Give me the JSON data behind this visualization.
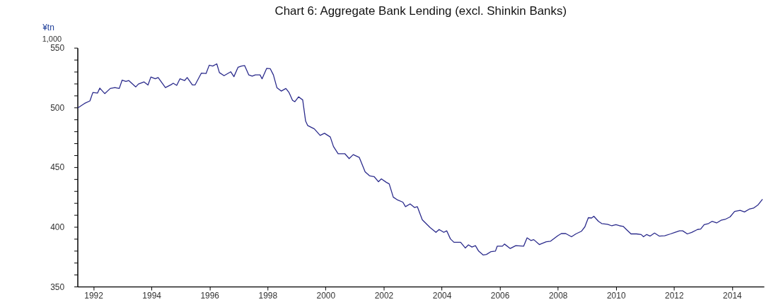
{
  "chart_data": {
    "type": "line",
    "title": "Chart 6: Aggregate Bank Lending (excl. Shinkin Banks)",
    "ylabel": "¥tn",
    "annotations": [
      "1,000"
    ],
    "x": [
      1991.46,
      1991.69,
      1991.88,
      1991.98,
      1992.14,
      1992.22,
      1992.39,
      1992.58,
      1992.74,
      1992.89,
      1992.99,
      1993.12,
      1993.22,
      1993.46,
      1993.55,
      1993.74,
      1993.88,
      1993.98,
      1994.13,
      1994.23,
      1994.48,
      1994.67,
      1994.75,
      1994.87,
      1994.98,
      1995.14,
      1995.23,
      1995.41,
      1995.5,
      1995.72,
      1995.88,
      1995.99,
      1996.11,
      1996.25,
      1996.34,
      1996.5,
      1996.73,
      1996.84,
      1996.98,
      1997.1,
      1997.21,
      1997.35,
      1997.47,
      1997.58,
      1997.74,
      1997.81,
      1997.97,
      1998.09,
      1998.2,
      1998.32,
      1998.47,
      1998.63,
      1998.74,
      1998.86,
      1998.94,
      1999.07,
      1999.21,
      1999.31,
      1999.38,
      1999.61,
      1999.81,
      1999.96,
      2000.16,
      2000.27,
      2000.43,
      2000.66,
      2000.81,
      2000.95,
      2001.16,
      2001.36,
      2001.51,
      2001.67,
      2001.82,
      2001.92,
      2002.09,
      2002.19,
      2002.33,
      2002.48,
      2002.66,
      2002.75,
      2002.91,
      2003.06,
      2003.16,
      2003.33,
      2003.6,
      2003.8,
      2003.91,
      2004.07,
      2004.17,
      2004.3,
      2004.42,
      2004.65,
      2004.81,
      2004.92,
      2005.04,
      2005.16,
      2005.27,
      2005.43,
      2005.54,
      2005.7,
      2005.85,
      2005.91,
      2006.09,
      2006.16,
      2006.36,
      2006.55,
      2006.82,
      2006.94,
      2007.07,
      2007.17,
      2007.36,
      2007.6,
      2007.75,
      2008.0,
      2008.12,
      2008.27,
      2008.47,
      2008.62,
      2008.81,
      2008.93,
      2009.05,
      2009.16,
      2009.24,
      2009.4,
      2009.51,
      2009.71,
      2009.86,
      2010.0,
      2010.13,
      2010.25,
      2010.36,
      2010.52,
      2010.71,
      2010.87,
      2010.95,
      2011.06,
      2011.18,
      2011.33,
      2011.49,
      2011.68,
      2011.88,
      2012.03,
      2012.19,
      2012.3,
      2012.46,
      2012.61,
      2012.81,
      2012.92,
      2013.04,
      2013.19,
      2013.31,
      2013.47,
      2013.62,
      2013.78,
      2013.93,
      2014.09,
      2014.28,
      2014.43,
      2014.59,
      2014.74,
      2014.9,
      2015.05
    ],
    "series": [
      {
        "color": "#2b2b8c",
        "values": [
          499.6,
          503.3,
          505.5,
          512.5,
          512,
          516.2,
          511.6,
          515.9,
          516.6,
          515.9,
          522.9,
          521.8,
          522.5,
          517.2,
          519.6,
          521.4,
          518.8,
          525.5,
          524,
          525.1,
          516.6,
          519,
          520.3,
          518.5,
          524,
          522.5,
          525.1,
          518.8,
          518.8,
          528.8,
          528.4,
          535.4,
          534.7,
          536.5,
          529.2,
          526.6,
          529.9,
          525.8,
          533.6,
          534.7,
          535.1,
          527.3,
          526.2,
          527.3,
          527.3,
          524,
          532.8,
          532.5,
          527.3,
          516.6,
          513.7,
          515.9,
          512.5,
          505.9,
          504.8,
          508.9,
          506.3,
          488.6,
          484.9,
          482.1,
          476.6,
          478.4,
          475.3,
          467.3,
          461.3,
          461.3,
          457.2,
          460.5,
          458.1,
          446.1,
          442.8,
          442.1,
          437.8,
          440.2,
          437.3,
          436,
          424.9,
          422.5,
          420.7,
          416.9,
          419.2,
          416.2,
          416.9,
          405.9,
          399.4,
          395.4,
          397.8,
          395.4,
          396.7,
          389.9,
          387.1,
          387.1,
          382.3,
          384.9,
          383.1,
          384.3,
          379.7,
          376.4,
          376.9,
          379.3,
          379.7,
          383.8,
          383.8,
          385.6,
          381.9,
          384.3,
          383.8,
          390.8,
          388.6,
          389.3,
          385.2,
          387.5,
          388,
          392.6,
          394.4,
          394.4,
          391.7,
          394.1,
          396.3,
          400,
          407.7,
          407.4,
          408.9,
          404.6,
          402.8,
          402.2,
          400.9,
          401.8,
          400.9,
          400.4,
          397.8,
          394.1,
          394.1,
          393.6,
          391.7,
          393.6,
          392.3,
          394.8,
          392.3,
          392.6,
          394.1,
          395.4,
          396.7,
          396.7,
          394.1,
          395.4,
          397.8,
          398.2,
          401.8,
          402.8,
          404.6,
          403.3,
          405.5,
          406.5,
          408.3,
          412.9,
          413.8,
          412.5,
          414.8,
          415.7,
          418.5,
          423.1
        ]
      }
    ],
    "xlim": [
      1991.45,
      2015.1
    ],
    "xticks": [
      1992,
      1994,
      1996,
      1998,
      2000,
      2002,
      2004,
      2006,
      2008,
      2010,
      2012,
      2014
    ],
    "ylim": [
      350,
      550
    ],
    "yticks": [
      350,
      {
        "value": 360,
        "label": null
      },
      {
        "value": 370,
        "label": null
      },
      {
        "value": 380,
        "label": null
      },
      {
        "value": 390,
        "label": null
      },
      400,
      {
        "value": 410,
        "label": null
      },
      {
        "value": 420,
        "label": null
      },
      {
        "value": 430,
        "label": null
      },
      {
        "value": 440,
        "label": null
      },
      450,
      {
        "value": 460,
        "label": null
      },
      {
        "value": 470,
        "label": null
      },
      {
        "value": 480,
        "label": null
      },
      {
        "value": 490,
        "label": null
      },
      500,
      {
        "value": 510,
        "label": null
      },
      {
        "value": 520,
        "label": null
      },
      {
        "value": 530,
        "label": null
      },
      {
        "value": 540,
        "label": null
      },
      550
    ],
    "grid": false,
    "marker": "none",
    "line_style": "solid"
  }
}
